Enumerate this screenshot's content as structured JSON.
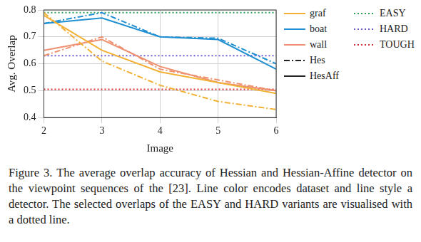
{
  "chart_data": {
    "type": "line",
    "x_label": "Image",
    "y_label": "Avg. Overlap",
    "x": [
      2,
      3,
      4,
      5,
      6
    ],
    "xlim": [
      2,
      6
    ],
    "xticks": [
      2,
      3,
      4,
      5,
      6
    ],
    "ylim": [
      0.4,
      0.8
    ],
    "yticks": [
      0.4,
      0.5,
      0.6,
      0.7,
      0.8
    ],
    "grid": true,
    "detectors": [
      {
        "name": "Hes",
        "line_style": "dashdot"
      },
      {
        "name": "HesAff",
        "line_style": "solid"
      }
    ],
    "series": [
      {
        "name": "graf",
        "detector": "HesAff",
        "color": "#f2b134",
        "line_style": "solid",
        "values": [
          0.78,
          0.65,
          0.57,
          0.53,
          0.49
        ]
      },
      {
        "name": "graf",
        "detector": "Hes",
        "color": "#f2b134",
        "line_style": "dashdot",
        "values": [
          0.79,
          0.61,
          0.52,
          0.46,
          0.43
        ]
      },
      {
        "name": "boat",
        "detector": "HesAff",
        "color": "#1f8fd2",
        "line_style": "solid",
        "values": [
          0.75,
          0.77,
          0.7,
          0.69,
          0.58
        ]
      },
      {
        "name": "boat",
        "detector": "Hes",
        "color": "#1f8fd2",
        "line_style": "dashdot",
        "values": [
          0.75,
          0.79,
          0.7,
          0.695,
          0.6
        ]
      },
      {
        "name": "wall",
        "detector": "HesAff",
        "color": "#ee9070",
        "line_style": "solid",
        "values": [
          0.65,
          0.69,
          0.59,
          0.53,
          0.5
        ]
      },
      {
        "name": "wall",
        "detector": "Hes",
        "color": "#ee9070",
        "line_style": "dashdot",
        "values": [
          0.63,
          0.7,
          0.58,
          0.54,
          0.5
        ]
      },
      {
        "name": "EASY",
        "color": "#2ca05a",
        "line_style": "dotted",
        "values": [
          0.79,
          0.79,
          0.79,
          0.79,
          0.79
        ]
      },
      {
        "name": "HARD",
        "color": "#6a5acd",
        "line_style": "dotted",
        "values": [
          0.63,
          0.63,
          0.63,
          0.63,
          0.63
        ]
      },
      {
        "name": "TOUGH",
        "color": "#d62d3a",
        "line_style": "dotted",
        "values": [
          0.505,
          0.505,
          0.505,
          0.505,
          0.505
        ]
      }
    ]
  },
  "caption": "Figure 3. The average overlap accuracy of Hessian and Hessian-Affine detector on the viewpoint sequences of the [23]. Line color encodes dataset and line style a detector. The selected overlaps of the EASY and HARD variants are visualised with a dotted line."
}
